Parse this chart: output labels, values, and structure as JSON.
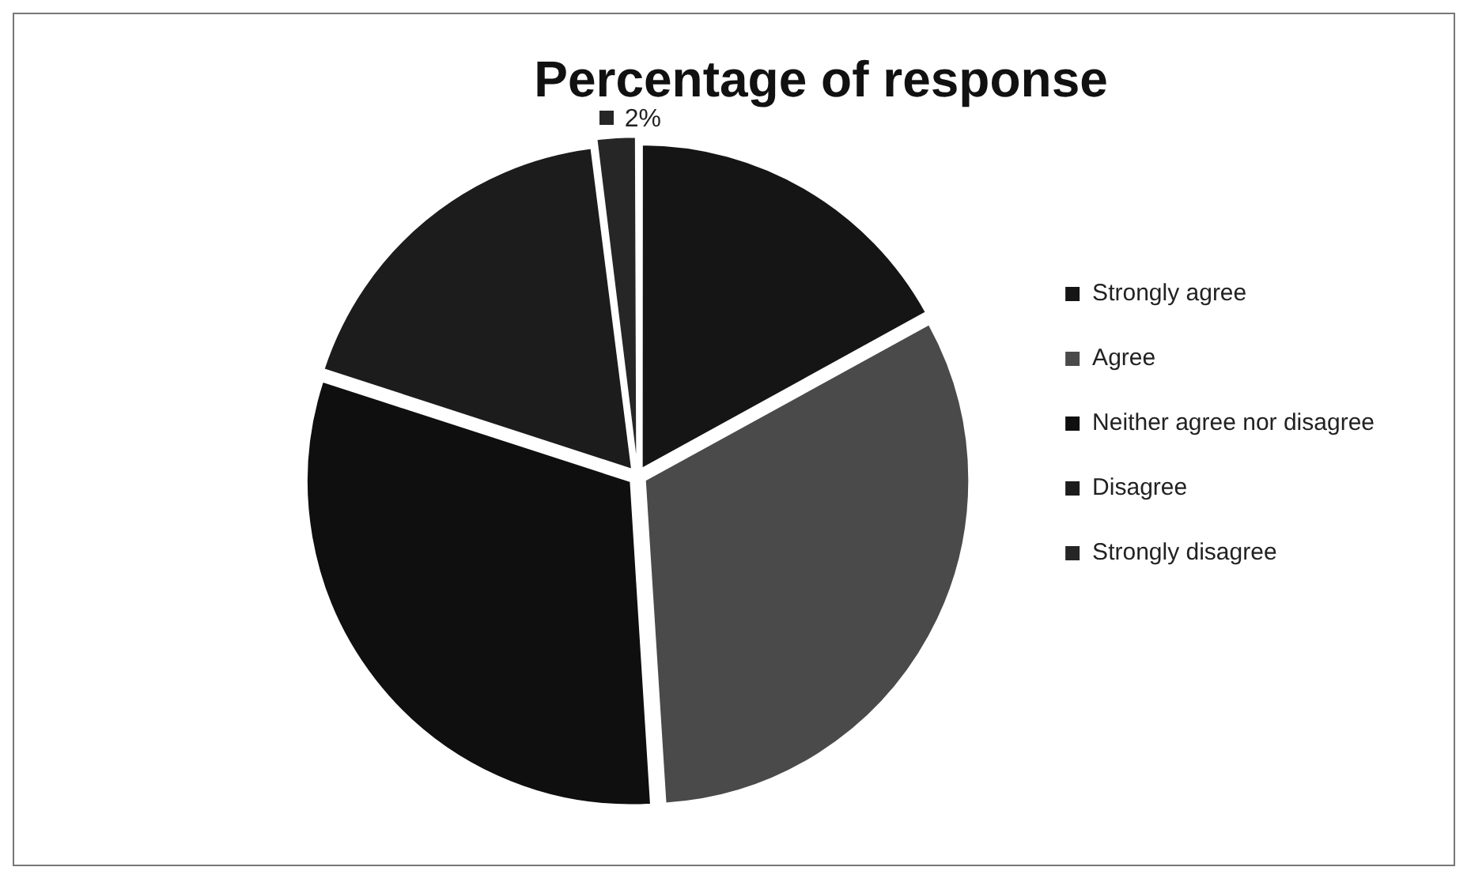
{
  "chart_data": {
    "type": "pie",
    "title": "Percentage of response",
    "categories": [
      "Strongly agree",
      "Agree",
      "Neither agree nor disagree",
      "Disagree",
      "Strongly disagree"
    ],
    "values": [
      17,
      32,
      31,
      18,
      2
    ],
    "colors": [
      "#151515",
      "#4a4a4a",
      "#0f0f0f",
      "#1c1c1c",
      "#262626"
    ],
    "value_labels": [
      null,
      null,
      null,
      null,
      "2%"
    ],
    "legend": "right"
  }
}
